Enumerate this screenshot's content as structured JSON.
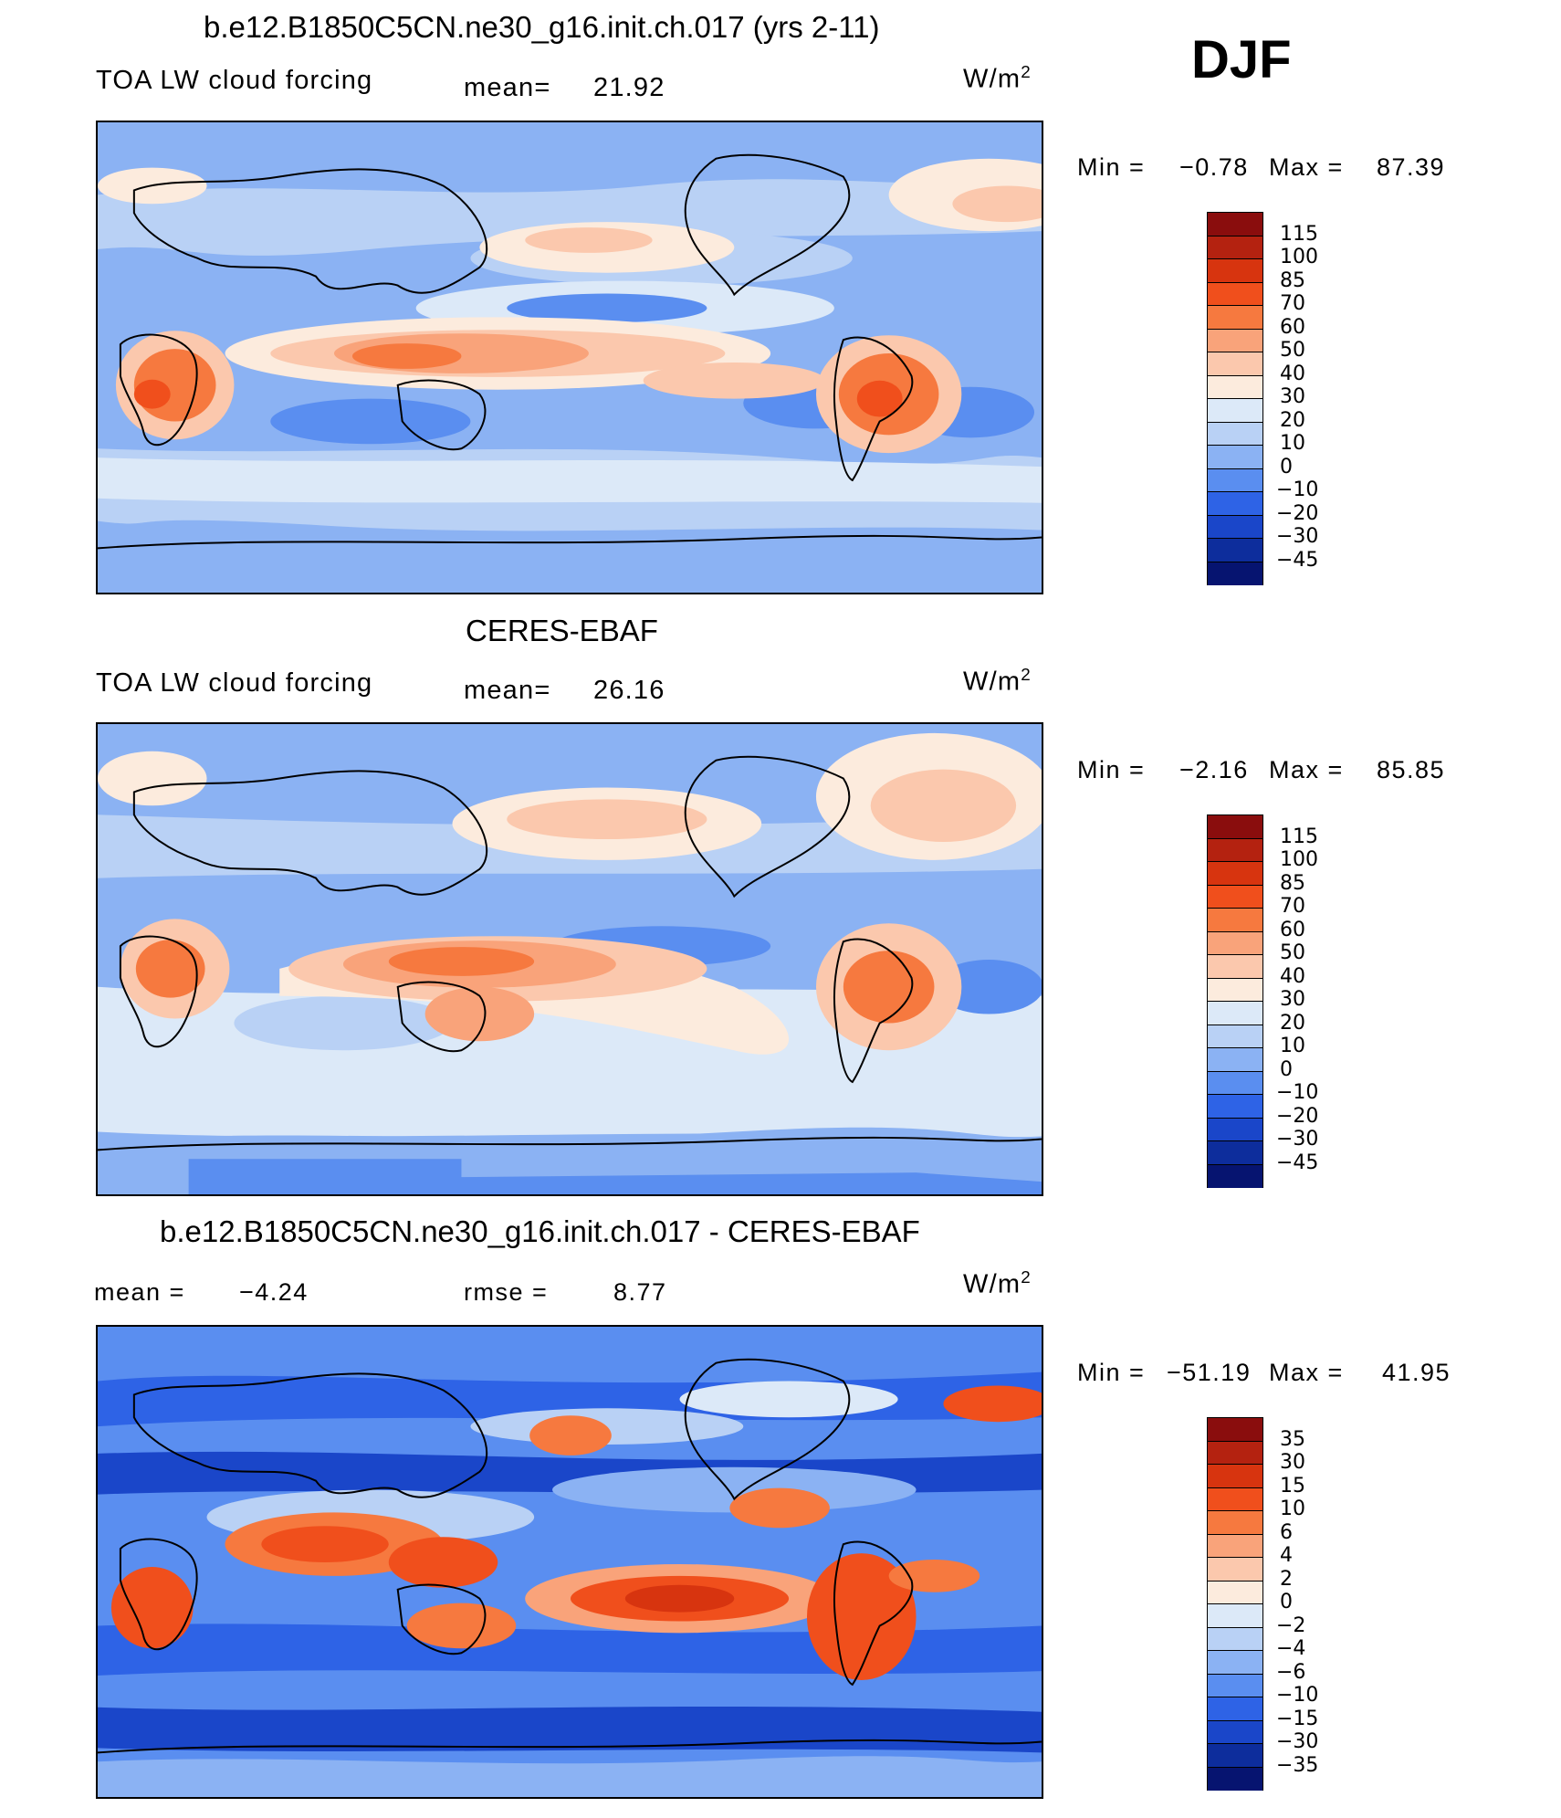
{
  "season": "DJF",
  "panels": [
    {
      "title": "b.e12.B1850C5CN.ne30_g16.init.ch.017 (yrs 2-11)",
      "left_label": "TOA LW cloud forcing",
      "center_label": "mean=",
      "center_value": "21.92",
      "units": "W/m",
      "units_exp": "2",
      "min_label": "Min =",
      "min_value": "−0.78",
      "max_label": "Max =",
      "max_value": "87.39",
      "colorbar_labels": [
        "115",
        "100",
        "85",
        "70",
        "60",
        "50",
        "40",
        "30",
        "20",
        "10",
        "0",
        "−10",
        "−20",
        "−30",
        "−45"
      ],
      "colorbar_colors": [
        "#8a0d0d",
        "#b42210",
        "#d7340f",
        "#f04f1c",
        "#f6793f",
        "#f9a37a",
        "#fbc8ad",
        "#fcebdd",
        "#dce9f8",
        "#b9d1f5",
        "#8bb2f3",
        "#5a8ef0",
        "#2e63e6",
        "#1a46c9",
        "#0d2d9c",
        "#061470"
      ]
    },
    {
      "title": "CERES-EBAF",
      "left_label": "TOA LW cloud forcing",
      "center_label": "mean=",
      "center_value": "26.16",
      "units": "W/m",
      "units_exp": "2",
      "min_label": "Min =",
      "min_value": "−2.16",
      "max_label": "Max =",
      "max_value": "85.85",
      "colorbar_labels": [
        "115",
        "100",
        "85",
        "70",
        "60",
        "50",
        "40",
        "30",
        "20",
        "10",
        "0",
        "−10",
        "−20",
        "−30",
        "−45"
      ],
      "colorbar_colors": [
        "#8a0d0d",
        "#b42210",
        "#d7340f",
        "#f04f1c",
        "#f6793f",
        "#f9a37a",
        "#fbc8ad",
        "#fcebdd",
        "#dce9f8",
        "#b9d1f5",
        "#8bb2f3",
        "#5a8ef0",
        "#2e63e6",
        "#1a46c9",
        "#0d2d9c",
        "#061470"
      ]
    },
    {
      "title": "b.e12.B1850C5CN.ne30_g16.init.ch.017 - CERES-EBAF",
      "left_label": "mean =",
      "left_value": "−4.24",
      "center_label": "rmse =",
      "center_value": "8.77",
      "units": "W/m",
      "units_exp": "2",
      "min_label": "Min =",
      "min_value": "−51.19",
      "max_label": "Max =",
      "max_value": "41.95",
      "colorbar_labels": [
        "35",
        "30",
        "15",
        "10",
        "6",
        "4",
        "2",
        "0",
        "−2",
        "−4",
        "−6",
        "−10",
        "−15",
        "−30",
        "−35"
      ],
      "colorbar_colors": [
        "#8a0d0d",
        "#b42210",
        "#d7340f",
        "#f04f1c",
        "#f6793f",
        "#f9a37a",
        "#fbc8ad",
        "#fcebdd",
        "#dce9f8",
        "#b9d1f5",
        "#8bb2f3",
        "#5a8ef0",
        "#2e63e6",
        "#1a46c9",
        "#0d2d9c",
        "#061470"
      ]
    }
  ],
  "chart_data": [
    {
      "type": "heatmap",
      "title": "b.e12.B1850C5CN.ne30_g16.init.ch.017 (yrs 2-11)",
      "variable": "TOA LW cloud forcing",
      "season": "DJF",
      "units": "W/m2",
      "mean": 21.92,
      "min": -0.78,
      "max": 87.39,
      "levels": [
        -45,
        -30,
        -20,
        -10,
        0,
        10,
        20,
        30,
        40,
        50,
        60,
        70,
        85,
        100,
        115
      ]
    },
    {
      "type": "heatmap",
      "title": "CERES-EBAF",
      "variable": "TOA LW cloud forcing",
      "season": "DJF",
      "units": "W/m2",
      "mean": 26.16,
      "min": -2.16,
      "max": 85.85,
      "levels": [
        -45,
        -30,
        -20,
        -10,
        0,
        10,
        20,
        30,
        40,
        50,
        60,
        70,
        85,
        100,
        115
      ]
    },
    {
      "type": "heatmap",
      "title": "b.e12.B1850C5CN.ne30_g16.init.ch.017 - CERES-EBAF",
      "season": "DJF",
      "units": "W/m2",
      "mean": -4.24,
      "rmse": 8.77,
      "min": -51.19,
      "max": 41.95,
      "levels": [
        -35,
        -30,
        -15,
        -10,
        -6,
        -4,
        -2,
        0,
        2,
        4,
        6,
        10,
        15,
        30,
        35
      ]
    }
  ]
}
